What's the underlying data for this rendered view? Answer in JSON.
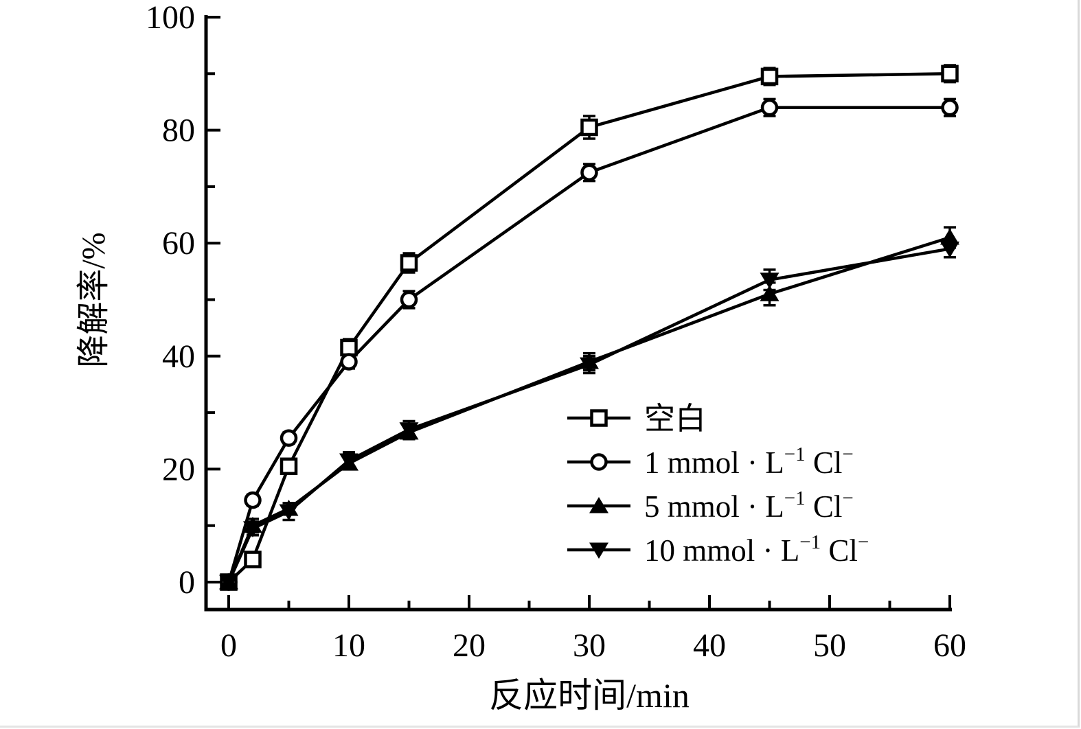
{
  "figure": {
    "background": "#ffffff",
    "ink_color": "#000000"
  },
  "chart_data": {
    "type": "line",
    "title": "",
    "xlabel": "反应时间/min",
    "ylabel": "降解率/%",
    "x": [
      0,
      2,
      5,
      10,
      15,
      30,
      45,
      60
    ],
    "xlim": [
      -2,
      60.2
    ],
    "ylim": [
      -5,
      100
    ],
    "x_major_ticks": [
      0,
      10,
      20,
      30,
      40,
      50,
      60
    ],
    "x_minor_ticks": [
      5,
      15,
      25,
      35,
      45,
      55
    ],
    "x_tick_labels": [
      "0",
      "10",
      "20",
      "30",
      "40",
      "50",
      "60"
    ],
    "y_major_ticks": [
      0,
      20,
      40,
      60,
      80,
      100
    ],
    "y_minor_ticks": [
      10,
      30,
      50,
      70,
      90
    ],
    "y_tick_labels": [
      "0",
      "20",
      "40",
      "60",
      "80",
      "100"
    ],
    "grid": false,
    "error_bars": true,
    "legend": {
      "position": "inside-right-middle",
      "items": [
        "空白",
        "1 mmol·L⁻¹ Cl⁻",
        "5 mmol·L⁻¹ Cl⁻",
        "10 mmol·L⁻¹ Cl⁻"
      ]
    },
    "series": [
      {
        "name": "空白",
        "marker": "square-open",
        "color": "#000000",
        "values": [
          0,
          4,
          20.5,
          41.5,
          56.5,
          80.5,
          89.5,
          90
        ],
        "errors": [
          0.8,
          1.0,
          1.2,
          1.5,
          1.7,
          2.0,
          1.5,
          1.5
        ],
        "label_parts": [
          {
            "text": "空白",
            "sup": false
          }
        ]
      },
      {
        "name": "1 mmol·L⁻¹ Cl⁻",
        "marker": "circle-open",
        "color": "#000000",
        "values": [
          0,
          14.5,
          25.5,
          39,
          50,
          72.5,
          84,
          84
        ],
        "errors": [
          0.8,
          1.0,
          1.0,
          1.2,
          1.5,
          1.5,
          1.5,
          1.5
        ],
        "label_parts": [
          {
            "text": "1 mmol · L",
            "sup": false
          },
          {
            "text": "−1",
            "sup": true
          },
          {
            "text": " Cl",
            "sup": false
          },
          {
            "text": "−",
            "sup": true
          }
        ]
      },
      {
        "name": "5 mmol·L⁻¹ Cl⁻",
        "marker": "triangle-up-filled",
        "color": "#000000",
        "values": [
          0,
          10,
          13,
          21,
          26.5,
          39,
          51,
          61
        ],
        "errors": [
          0.8,
          1.2,
          1.0,
          1.0,
          1.2,
          1.5,
          2.0,
          1.8
        ],
        "label_parts": [
          {
            "text": "5 mmol · L",
            "sup": false
          },
          {
            "text": "−1",
            "sup": true
          },
          {
            "text": " Cl",
            "sup": false
          },
          {
            "text": "−",
            "sup": true
          }
        ]
      },
      {
        "name": "10 mmol·L⁻¹ Cl⁻",
        "marker": "triangle-down-filled",
        "color": "#000000",
        "values": [
          0,
          9.5,
          12.5,
          21.5,
          27,
          38.5,
          53.5,
          59
        ],
        "errors": [
          0.8,
          1.2,
          1.5,
          1.5,
          1.5,
          1.5,
          1.8,
          1.5
        ],
        "label_parts": [
          {
            "text": "10 mmol · L",
            "sup": false
          },
          {
            "text": "−1",
            "sup": true
          },
          {
            "text": " Cl",
            "sup": false
          },
          {
            "text": "−",
            "sup": true
          }
        ]
      }
    ]
  }
}
